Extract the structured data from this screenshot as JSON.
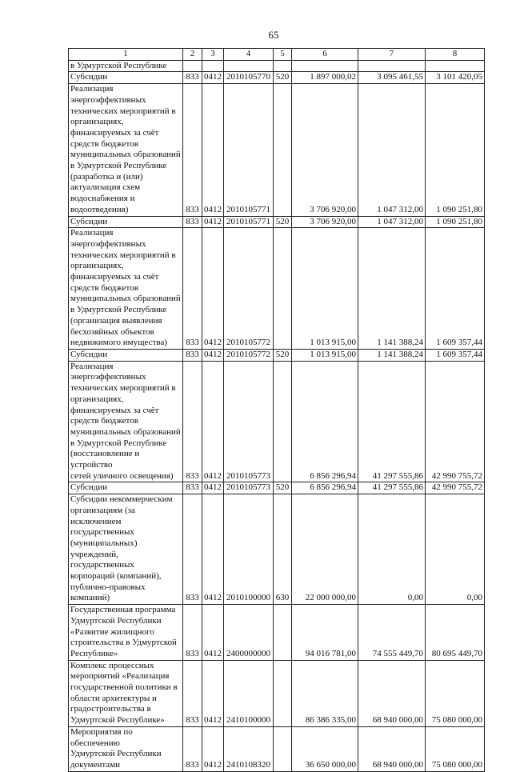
{
  "page_number": "65",
  "header": [
    "1",
    "2",
    "3",
    "4",
    "5",
    "6",
    "7",
    "8"
  ],
  "rows": [
    {
      "name": "в Удмуртской Республике",
      "c2": "",
      "c3": "",
      "c4": "",
      "c5": "",
      "c6": "",
      "c7": "",
      "c8": ""
    },
    {
      "name": "Субсидии",
      "c2": "833",
      "c3": "0412",
      "c4": "2010105770",
      "c5": "520",
      "c6": "1 897 000,02",
      "c7": "3 095 461,55",
      "c8": "3 101 420,05"
    },
    {
      "name": "Реализация\nэнергоэффективных\nтехнических мероприятий в\nорганизациях,\nфинансируемых за счёт\nсредств бюджетов\nмуниципальных образований\nв Удмуртской Республике\n(разработка и (или)\nактуализация схем\nводоснабжения и\nводоотведения)",
      "c2": "833",
      "c3": "0412",
      "c4": "2010105771",
      "c5": "",
      "c6": "3 706 920,00",
      "c7": "1 047 312,00",
      "c8": "1 090 251,80"
    },
    {
      "name": "Субсидии",
      "c2": "833",
      "c3": "0412",
      "c4": "2010105771",
      "c5": "520",
      "c6": "3 706 920,00",
      "c7": "1 047 312,00",
      "c8": "1 090 251,80"
    },
    {
      "name": "Реализация\nэнергоэффективных\nтехнических мероприятий в\nорганизациях,\nфинансируемых за счёт\nсредств бюджетов\nмуниципальных образований\nв Удмуртской Республике\n(организация выявления\nбесхозяйных объектов\nнедвижимого имущества)",
      "c2": "833",
      "c3": "0412",
      "c4": "2010105772",
      "c5": "",
      "c6": "1 013 915,00",
      "c7": "1 141 388,24",
      "c8": "1 609 357,44"
    },
    {
      "name": "Субсидии",
      "c2": "833",
      "c3": "0412",
      "c4": "2010105772",
      "c5": "520",
      "c6": "1 013 915,00",
      "c7": "1 141 388,24",
      "c8": "1 609 357,44"
    },
    {
      "name": "Реализация\nэнергоэффективных\nтехнических мероприятий в\nорганизациях,\nфинансируемых за счёт\nсредств бюджетов\nмуниципальных образований\nв Удмуртской Республике\n(восстановление и устройство\nсетей уличного освещения)",
      "c2": "833",
      "c3": "0412",
      "c4": "2010105773",
      "c5": "",
      "c6": "6 856 296,94",
      "c7": "41 297 555,86",
      "c8": "42 990 755,72"
    },
    {
      "name": "Субсидии",
      "c2": "833",
      "c3": "0412",
      "c4": "2010105773",
      "c5": "520",
      "c6": "6 856 296,94",
      "c7": "41 297 555,86",
      "c8": "42 990 755,72"
    },
    {
      "name": "Субсидии некоммерческим\nорганизациям (за\nисключением\nгосударственных\n(муниципальных)\nучреждений, государственных\nкорпораций (компаний),\nпублично-правовых\nкомпаний)",
      "c2": "833",
      "c3": "0412",
      "c4": "2010100000",
      "c5": "630",
      "c6": "22 000 000,00",
      "c7": "0,00",
      "c8": "0,00"
    },
    {
      "name": "Государственная программа\nУдмуртской Республики\n«Развитие жилищного\nстроительства в Удмуртской\nРеспублике»",
      "c2": "833",
      "c3": "0412",
      "c4": "2400000000",
      "c5": "",
      "c6": "94 016 781,00",
      "c7": "74 555 449,70",
      "c8": "80 695 449,70"
    },
    {
      "name": "Комплекс процессных\nмероприятий «Реализация\nгосударственной политики в\nобласти архитектуры и\nградостроительства в\nУдмуртской Республике»",
      "c2": "833",
      "c3": "0412",
      "c4": "2410100000",
      "c5": "",
      "c6": "86 386 335,00",
      "c7": "68 940 000,00",
      "c8": "75 080 000,00"
    },
    {
      "name": "Мероприятия по обеспечению\nУдмуртской Республики\nдокументами",
      "c2": "833",
      "c3": "0412",
      "c4": "2410108320",
      "c5": "",
      "c6": "36 650 000,00",
      "c7": "68 940 000,00",
      "c8": "75 080 000,00"
    }
  ]
}
